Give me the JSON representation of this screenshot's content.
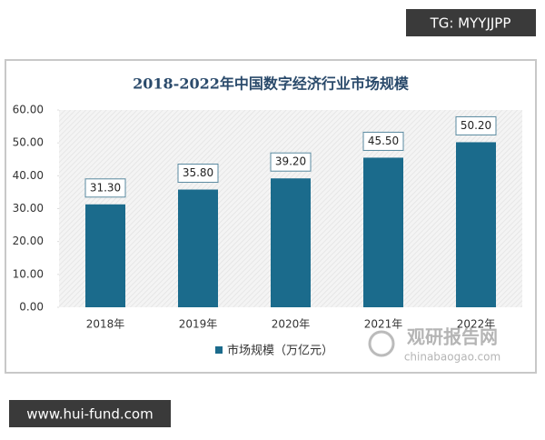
{
  "chart_data": {
    "type": "bar",
    "title": "2018-2022年中国数字经济行业市场规模",
    "categories": [
      "2018年",
      "2019年",
      "2020年",
      "2021年",
      "2022年"
    ],
    "series": [
      {
        "name": "市场规模（万亿元）",
        "color": "#1b6b8c",
        "values": [
          31.3,
          35.8,
          39.2,
          45.5,
          50.2
        ],
        "value_labels": [
          "31.30",
          "35.80",
          "39.20",
          "45.50",
          "50.20"
        ]
      }
    ],
    "ylim": [
      0,
      60
    ],
    "yticks": [
      {
        "value": 0,
        "label": "0.00"
      },
      {
        "value": 10,
        "label": "10.00"
      },
      {
        "value": 20,
        "label": "20.00"
      },
      {
        "value": 30,
        "label": "30.00"
      },
      {
        "value": 40,
        "label": "40.00"
      },
      {
        "value": 50,
        "label": "50.00"
      },
      {
        "value": 60,
        "label": "60.00"
      }
    ],
    "legend": "bottom"
  },
  "overlays": {
    "tg": "TG: MYYJJPP",
    "site": "www.hui-fund.com",
    "watermark_cn": "观研报告网",
    "watermark_en": "chinabaogao.com"
  }
}
